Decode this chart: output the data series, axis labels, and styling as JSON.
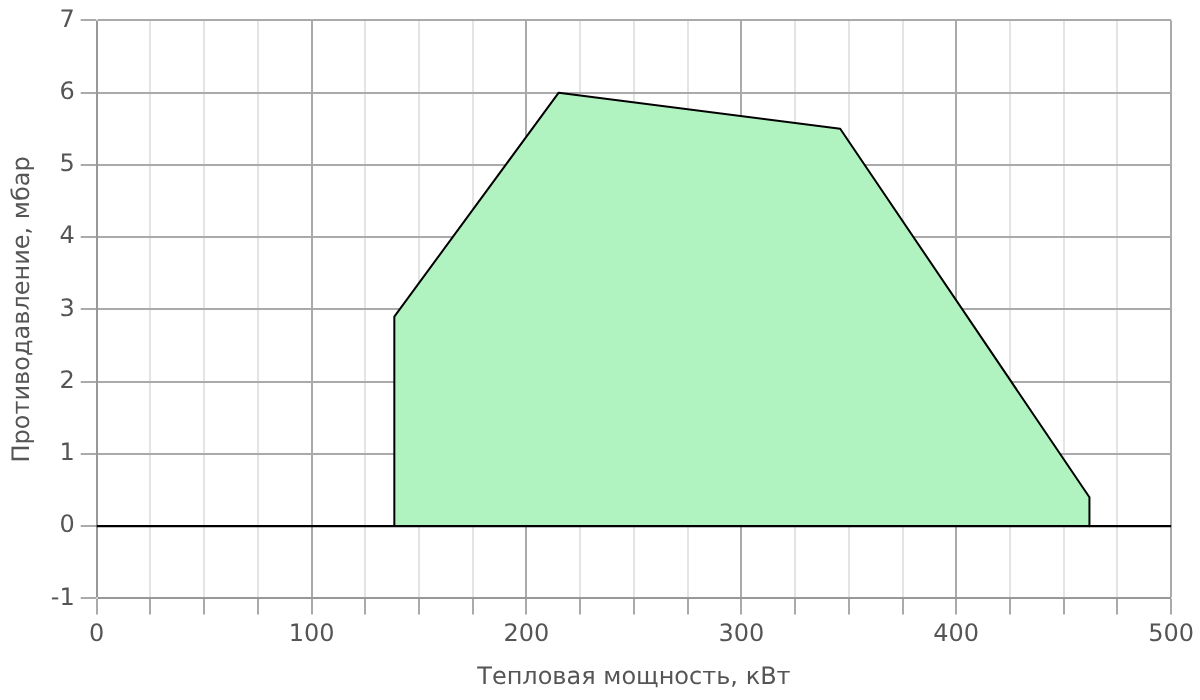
{
  "chart_data": {
    "type": "area",
    "xlabel": "Тепловая мощность, кВт",
    "ylabel": "Противодавление, мбар",
    "series": [
      {
        "color": "#b0f2c0",
        "x": [
          138.5,
          138.5,
          215,
          346,
          462,
          462
        ],
        "values": [
          0,
          2.9,
          6,
          5.5,
          0.4,
          0
        ]
      }
    ],
    "xlim": [
      0,
      500
    ],
    "xticks": [
      0,
      {
        "value": 25,
        "label": null
      },
      {
        "value": 50,
        "label": null
      },
      {
        "value": 75,
        "label": null
      },
      100,
      {
        "value": 125,
        "label": null
      },
      {
        "value": 150,
        "label": null
      },
      {
        "value": 175,
        "label": null
      },
      200,
      {
        "value": 225,
        "label": null
      },
      {
        "value": 250,
        "label": null
      },
      {
        "value": 275,
        "label": null
      },
      300,
      {
        "value": 325,
        "label": null
      },
      {
        "value": 350,
        "label": null
      },
      {
        "value": 375,
        "label": null
      },
      400,
      {
        "value": 425,
        "label": null
      },
      {
        "value": 450,
        "label": null
      },
      {
        "value": 475,
        "label": null
      },
      500
    ],
    "ylim": [
      -1,
      7
    ],
    "yticks": [
      -1,
      0,
      1,
      2,
      3,
      4,
      5,
      6,
      7
    ],
    "ref_lines": [
      {
        "axis": "y",
        "value": 0,
        "color": "#000000"
      }
    ],
    "grid": true,
    "legend": false,
    "marker": "none"
  }
}
